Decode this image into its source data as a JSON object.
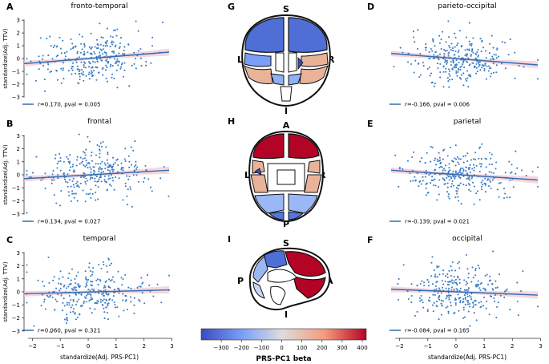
{
  "colors": {
    "points": "#3b7dc4",
    "regression_line": "#2f6db2",
    "ci_band": "#f3c9d2",
    "axis": "#333333",
    "cmap_low": "#3a4cc0",
    "cmap_mid": "#dddddd",
    "cmap_high": "#b40426"
  },
  "chart_data": [
    {
      "type": "scatter",
      "panel": "A",
      "title": "fronto-temporal",
      "ylabel": "standardize(Adj. TTV)",
      "xlabel": "",
      "xlim": [
        -2.3,
        3.1
      ],
      "ylim": [
        -3.2,
        3.2
      ],
      "xticks": [],
      "yticks": [
        -3,
        -2,
        -1,
        0,
        1,
        2,
        3
      ],
      "r": 0.17,
      "stat_r": "r=0.170, pval = 0.005",
      "regression": {
        "x": [
          -2.3,
          2.9
        ],
        "y": [
          -0.4,
          0.5
        ]
      }
    },
    {
      "type": "scatter",
      "panel": "B",
      "title": "frontal",
      "ylabel": "standardize(Adj. TTV)",
      "xlabel": "",
      "xlim": [
        -2.3,
        3.1
      ],
      "ylim": [
        -3.2,
        3.2
      ],
      "xticks": [],
      "yticks": [
        -3,
        -2,
        -1,
        0,
        1,
        2,
        3
      ],
      "r": 0.134,
      "stat_r": "r=0.134, pval = 0.027",
      "regression": {
        "x": [
          -2.3,
          2.9
        ],
        "y": [
          -0.3,
          0.35
        ]
      }
    },
    {
      "type": "scatter",
      "panel": "C",
      "title": "temporal",
      "ylabel": "standardize(Adj. TTV)",
      "xlabel": "standardize(Adj. PRS-PC1)",
      "xlim": [
        -2.3,
        3.1
      ],
      "ylim": [
        -3.2,
        3.2
      ],
      "xticks": [
        -2,
        -1,
        0,
        1,
        2,
        3
      ],
      "yticks": [
        -3,
        -2,
        -1,
        0,
        1,
        2,
        3
      ],
      "r": 0.06,
      "stat_r": "r=0.060, pval = 0.321",
      "regression": {
        "x": [
          -2.3,
          2.9
        ],
        "y": [
          -0.15,
          0.15
        ]
      }
    },
    {
      "type": "scatter",
      "panel": "D",
      "title": "parieto-occipital",
      "ylabel": "",
      "xlabel": "",
      "xlim": [
        -2.3,
        3.1
      ],
      "ylim": [
        -3.2,
        3.2
      ],
      "xticks": [],
      "yticks": [],
      "r": -0.166,
      "stat_r": "r=-0.166, pval = 0.006",
      "regression": {
        "x": [
          -2.3,
          2.9
        ],
        "y": [
          0.4,
          -0.5
        ]
      }
    },
    {
      "type": "scatter",
      "panel": "E",
      "title": "parietal",
      "ylabel": "",
      "xlabel": "",
      "xlim": [
        -2.3,
        3.1
      ],
      "ylim": [
        -3.2,
        3.2
      ],
      "xticks": [],
      "yticks": [],
      "r": -0.139,
      "stat_r": "r=-0.139, pval = 0.021",
      "regression": {
        "x": [
          -2.3,
          2.9
        ],
        "y": [
          0.35,
          -0.4
        ]
      }
    },
    {
      "type": "scatter",
      "panel": "F",
      "title": "occipital",
      "ylabel": "",
      "xlabel": "standardize(Adj. PRS-PC1)",
      "xlim": [
        -2.3,
        3.1
      ],
      "ylim": [
        -3.2,
        3.2
      ],
      "xticks": [
        -2,
        -1,
        0,
        1,
        2,
        3
      ],
      "yticks": [],
      "r": -0.084,
      "stat_r": "r=-0.084, pval = 0.165",
      "regression": {
        "x": [
          -2.3,
          2.9
        ],
        "y": [
          0.2,
          -0.25
        ]
      }
    }
  ],
  "brain_panels": [
    {
      "letter": "G",
      "labels": {
        "top": "S",
        "left": "L",
        "right": "R",
        "bottom": "I"
      }
    },
    {
      "letter": "H",
      "labels": {
        "top": "A",
        "left": "L",
        "right": "R",
        "bottom": "P"
      }
    },
    {
      "letter": "I",
      "labels": {
        "top": "S",
        "left": "P",
        "right": "A",
        "bottom": "I"
      }
    }
  ],
  "colorbar": {
    "label": "PRS-PC1 beta",
    "ticks": [
      -300,
      -200,
      -100,
      0,
      100,
      200,
      300,
      400
    ],
    "range": [
      -400,
      420
    ]
  }
}
